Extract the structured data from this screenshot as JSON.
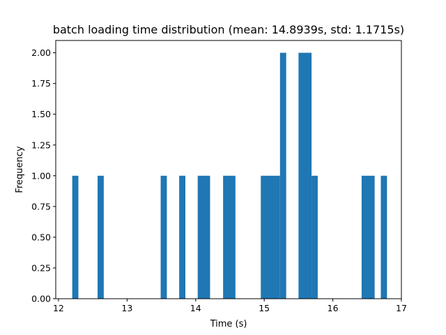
{
  "chart_data": {
    "type": "bar",
    "title": "batch loading time distribution (mean: 14.8939s, std: 1.1715s)",
    "xlabel": "Time (s)",
    "ylabel": "Frequency",
    "xlim": [
      11.96,
      17.0
    ],
    "ylim": [
      0.0,
      2.1
    ],
    "xticks": [
      12,
      13,
      14,
      15,
      16,
      17
    ],
    "xtick_labels": [
      "12",
      "13",
      "14",
      "15",
      "16",
      "17"
    ],
    "yticks": [
      0.0,
      0.25,
      0.5,
      0.75,
      1.0,
      1.25,
      1.5,
      1.75,
      2.0
    ],
    "ytick_labels": [
      "0.00",
      "0.25",
      "0.50",
      "0.75",
      "1.00",
      "1.25",
      "1.50",
      "1.75",
      "2.00"
    ],
    "grid": false,
    "bar_color": "#1f77b4",
    "bins": [
      {
        "x0": 12.2,
        "x1": 12.29,
        "value": 1
      },
      {
        "x0": 12.57,
        "x1": 12.66,
        "value": 1
      },
      {
        "x0": 13.49,
        "x1": 13.58,
        "value": 1
      },
      {
        "x0": 13.76,
        "x1": 13.85,
        "value": 1
      },
      {
        "x0": 14.03,
        "x1": 14.21,
        "value": 1
      },
      {
        "x0": 14.4,
        "x1": 14.58,
        "value": 1
      },
      {
        "x0": 14.95,
        "x1": 15.23,
        "value": 1
      },
      {
        "x0": 15.23,
        "x1": 15.32,
        "value": 2
      },
      {
        "x0": 15.5,
        "x1": 15.69,
        "value": 2
      },
      {
        "x0": 15.69,
        "x1": 15.78,
        "value": 1
      },
      {
        "x0": 16.42,
        "x1": 16.61,
        "value": 1
      },
      {
        "x0": 16.7,
        "x1": 16.79,
        "value": 1
      }
    ]
  }
}
